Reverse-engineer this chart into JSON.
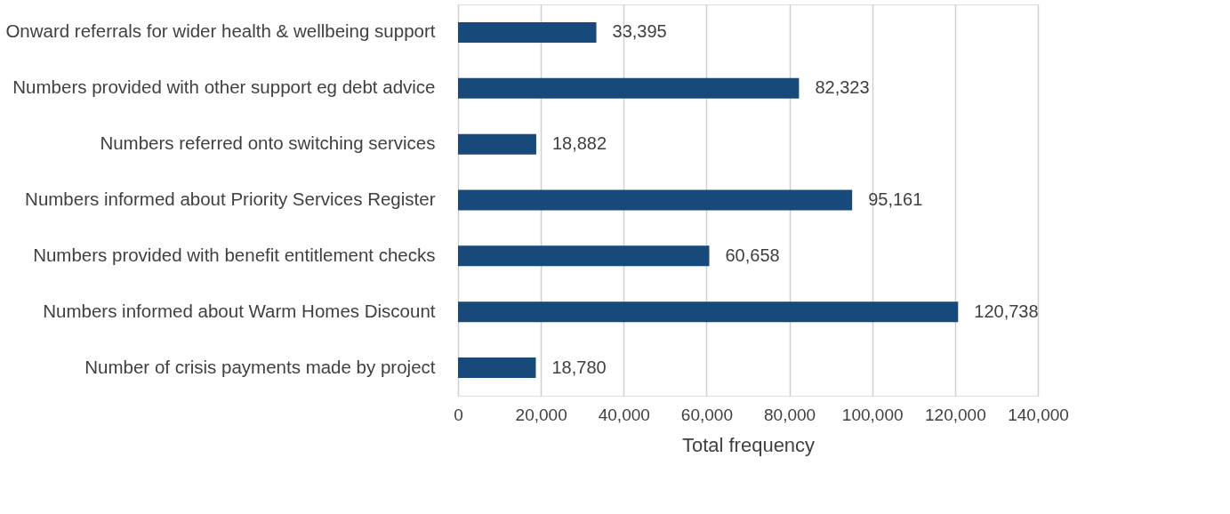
{
  "chart_data": {
    "type": "bar",
    "orientation": "horizontal",
    "xlabel": "Total frequency",
    "categories": [
      "Onward referrals for wider health & wellbeing support",
      "Numbers provided with other support eg debt advice",
      "Numbers referred onto switching services",
      "Numbers informed about Priority Services Register",
      "Numbers provided with benefit entitlement checks",
      "Numbers informed about Warm Homes Discount",
      "Number of crisis payments made by project"
    ],
    "values": [
      33395,
      82323,
      18882,
      95161,
      60658,
      120738,
      18780
    ],
    "color": "#17497a",
    "xlim": [
      0,
      140000
    ],
    "xticks": [
      {
        "value": 0,
        "label": "0"
      },
      {
        "value": 20000,
        "label": "20,000"
      },
      {
        "value": 40000,
        "label": "40,000"
      },
      {
        "value": 60000,
        "label": "60,000"
      },
      {
        "value": 80000,
        "label": "80,000"
      },
      {
        "value": 100000,
        "label": "100,000"
      },
      {
        "value": 120000,
        "label": "120,000"
      },
      {
        "value": 140000,
        "label": "140,000"
      }
    ],
    "value_labels": [
      "33,395",
      "82,323",
      "18,882",
      "95,161",
      "60,658",
      "120,738",
      "18,780"
    ],
    "grid": "x"
  }
}
